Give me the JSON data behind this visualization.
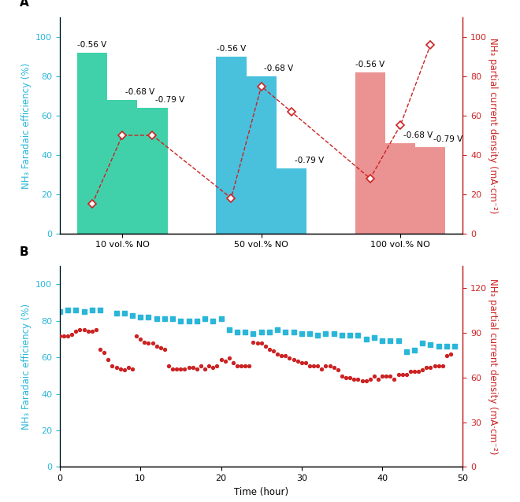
{
  "panel_A": {
    "groups": [
      "10 vol.% NO",
      "50 vol.% NO",
      "100 vol.% NO"
    ],
    "voltages": [
      "-0.56 V",
      "-0.68 V",
      "-0.79 V"
    ],
    "bar_colors": [
      "#1EC99B",
      "#29B6D8",
      "#E88080"
    ],
    "fe_values": [
      [
        92,
        68,
        64
      ],
      [
        90,
        80,
        33
      ],
      [
        82,
        46,
        44
      ]
    ],
    "cd_values": [
      [
        15,
        50,
        50
      ],
      [
        18,
        75,
        62
      ],
      [
        28,
        55,
        96
      ]
    ],
    "ylim_left": [
      0,
      110
    ],
    "ylim_right": [
      0,
      110
    ],
    "yticks_left": [
      0,
      20,
      40,
      60,
      80,
      100
    ],
    "yticks_right": [
      0,
      20,
      40,
      60,
      80,
      100
    ],
    "ylabel_left": "NH₃ Faradaic efficiency (%)",
    "ylabel_right": "NH₃ partial current density (mA·cm⁻²)",
    "label_color_left": "#29B6D8",
    "label_color_right": "#CC2222",
    "diamond_color": "#CC2222",
    "line_color": "#CC2222",
    "bar_alpha": 0.85
  },
  "panel_B": {
    "time_fe": [
      0,
      1,
      2,
      3,
      4,
      5,
      7,
      8,
      9,
      10,
      11,
      12,
      13,
      14,
      15,
      16,
      17,
      18,
      19,
      20,
      21,
      22,
      23,
      24,
      25,
      26,
      27,
      28,
      29,
      30,
      31,
      32,
      33,
      34,
      35,
      36,
      37,
      38,
      39,
      40,
      41,
      42,
      43,
      44,
      45,
      46,
      47,
      48,
      49
    ],
    "fe_values": [
      85,
      86,
      86,
      85,
      86,
      86,
      84,
      84,
      83,
      82,
      82,
      81,
      81,
      81,
      80,
      80,
      80,
      81,
      80,
      81,
      75,
      74,
      74,
      73,
      74,
      74,
      75,
      74,
      74,
      73,
      73,
      72,
      73,
      73,
      72,
      72,
      72,
      70,
      71,
      69,
      69,
      69,
      63,
      64,
      68,
      67,
      66,
      66,
      66
    ],
    "time_cd": [
      0,
      0.5,
      1,
      1.5,
      2,
      2.5,
      3,
      3.5,
      4,
      4.5,
      5,
      5.5,
      6,
      6.5,
      7,
      7.5,
      8,
      8.5,
      9,
      9.5,
      10,
      10.5,
      11,
      11.5,
      12,
      12.5,
      13,
      13.5,
      14,
      14.5,
      15,
      15.5,
      16,
      16.5,
      17,
      17.5,
      18,
      18.5,
      19,
      19.5,
      20,
      20.5,
      21,
      21.5,
      22,
      22.5,
      23,
      23.5,
      24,
      24.5,
      25,
      25.5,
      26,
      26.5,
      27,
      27.5,
      28,
      28.5,
      29,
      29.5,
      30,
      30.5,
      31,
      31.5,
      32,
      32.5,
      33,
      33.5,
      34,
      34.5,
      35,
      35.5,
      36,
      36.5,
      37,
      37.5,
      38,
      38.5,
      39,
      39.5,
      40,
      40.5,
      41,
      41.5,
      42,
      42.5,
      43,
      43.5,
      44,
      44.5,
      45,
      45.5,
      46,
      46.5,
      47,
      47.5,
      48,
      48.5
    ],
    "cd_values": [
      88,
      88,
      88,
      89,
      91,
      92,
      92,
      91,
      91,
      92,
      79,
      77,
      72,
      68,
      67,
      66,
      65,
      67,
      66,
      88,
      86,
      84,
      83,
      83,
      81,
      80,
      79,
      68,
      66,
      66,
      66,
      66,
      67,
      67,
      66,
      68,
      66,
      68,
      67,
      68,
      72,
      71,
      73,
      70,
      68,
      68,
      68,
      68,
      84,
      83,
      83,
      81,
      79,
      78,
      76,
      75,
      75,
      73,
      72,
      71,
      70,
      70,
      68,
      68,
      68,
      66,
      68,
      68,
      67,
      65,
      61,
      60,
      60,
      59,
      59,
      58,
      58,
      59,
      61,
      59,
      61,
      61,
      61,
      59,
      62,
      62,
      62,
      64,
      64,
      64,
      65,
      67,
      67,
      68,
      68,
      68,
      75,
      76
    ],
    "ylim_left": [
      0,
      110
    ],
    "ylim_right": [
      0,
      135
    ],
    "yticks_left": [
      0,
      20,
      40,
      60,
      80,
      100
    ],
    "yticks_right": [
      0,
      30,
      60,
      90,
      120
    ],
    "ylabel_left": "NH₃ Faradaic efficiency (%)",
    "ylabel_right": "NH₃ partial current density (mA·cm⁻²)",
    "xlabel": "Time (hour)",
    "xlim": [
      0,
      50
    ],
    "xticks": [
      0,
      10,
      20,
      30,
      40,
      50
    ],
    "fe_color": "#29B6D8",
    "cd_color": "#CC2222",
    "label_color_left": "#29B6D8",
    "label_color_right": "#CC2222"
  },
  "bg_color": "#FFFFFF",
  "panel_label_fontsize": 11,
  "axis_fontsize": 8.5,
  "tick_fontsize": 8,
  "volt_label_fontsize": 7.5
}
